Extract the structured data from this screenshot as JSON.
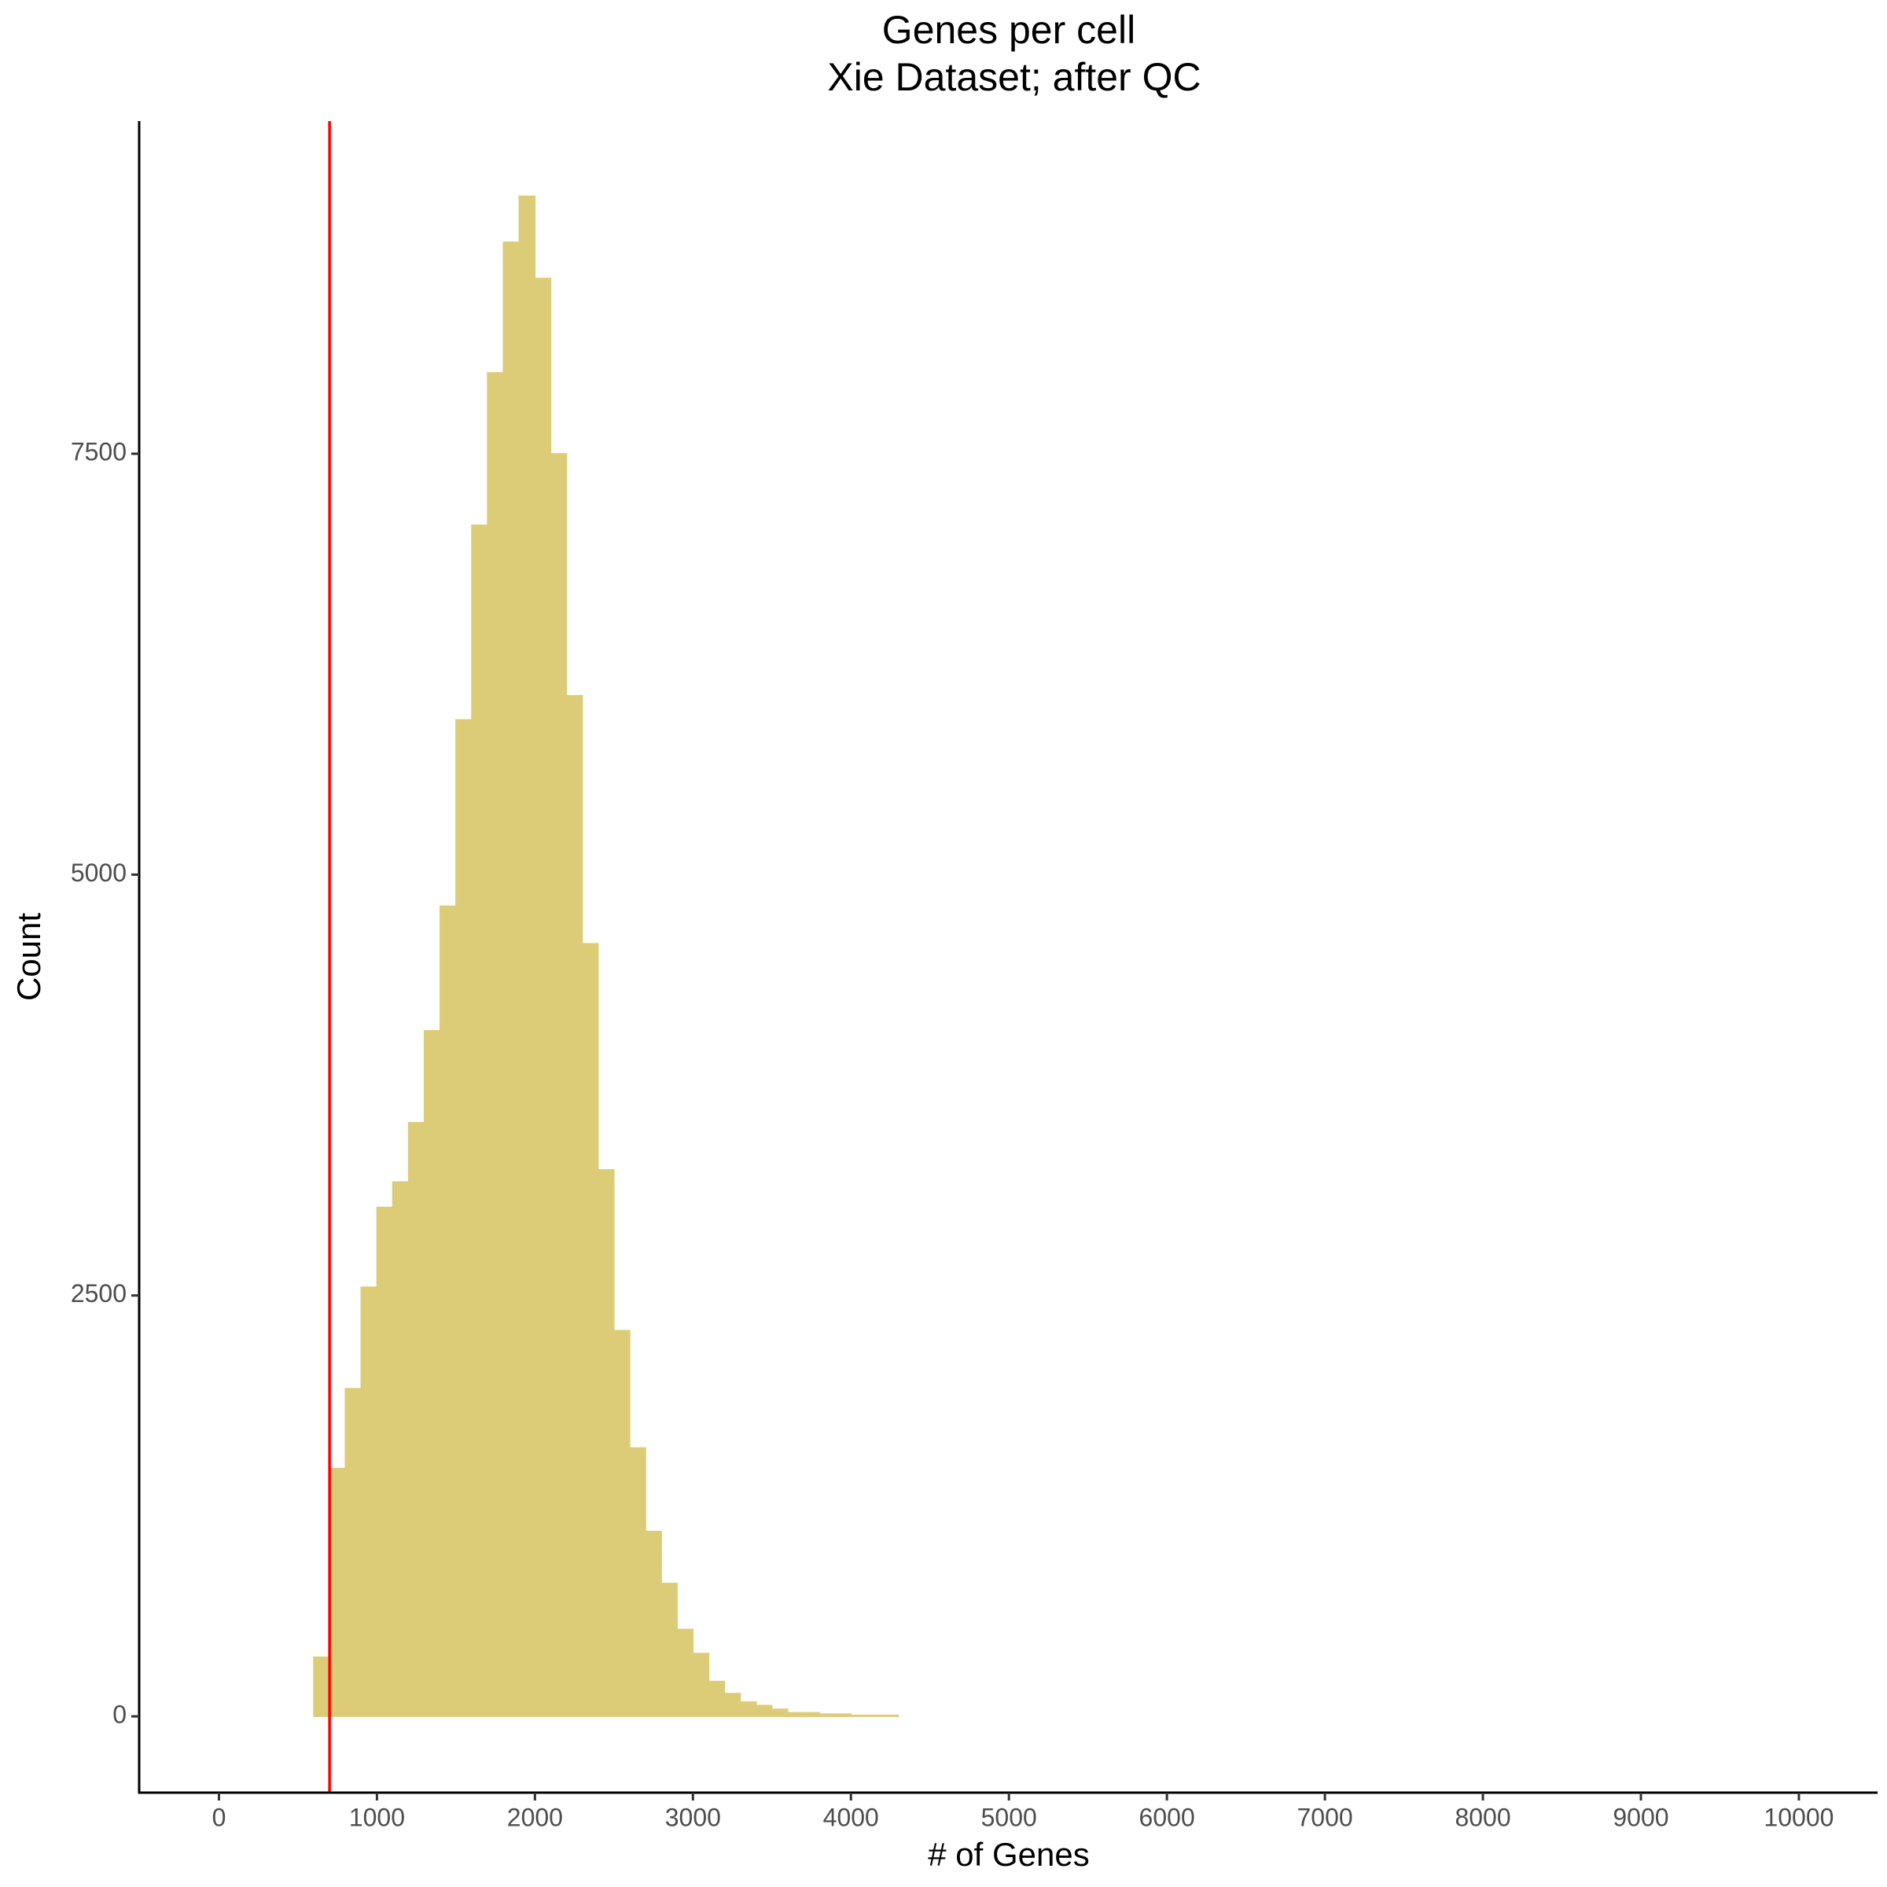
{
  "chart_data": {
    "type": "histogram",
    "title": "Genes per cell",
    "subtitle": "Xie Dataset; after QC",
    "x_label": "# of Genes",
    "y_label": "Count",
    "color": "#dccc78",
    "vline": 700,
    "vline_color": "#ff0000",
    "bins": [
      0,
      100,
      200,
      300,
      400,
      500,
      600,
      700,
      800,
      900,
      1000,
      1100,
      1200,
      1300,
      1400,
      1500,
      1600,
      1700,
      1800,
      1900,
      2000,
      2100,
      2200,
      2300,
      2400,
      2500,
      2600,
      2700,
      2800,
      2900,
      3000,
      3100,
      3200,
      3300,
      3400,
      3500,
      3600,
      3700,
      3800,
      3900,
      4000,
      4100,
      4200,
      4300,
      4400,
      4500,
      4600,
      4700,
      4800,
      4900,
      5000,
      5100,
      5200,
      5300,
      5400,
      5500,
      5600,
      5700,
      5800,
      5900,
      6000,
      6100,
      6200,
      6300,
      6400,
      6500,
      6600,
      6700,
      6800,
      6900,
      7000,
      7100,
      7200,
      7300,
      7400,
      7500,
      7600,
      7700,
      7800,
      7900,
      8000,
      8100,
      8200,
      8300,
      8400,
      8500,
      8600,
      8700,
      8800,
      8900,
      9000,
      9100,
      9200,
      9300,
      9400,
      9500,
      9600,
      9700,
      9800,
      9900,
      10000
    ],
    "values": [
      0,
      0,
      0,
      0,
      0,
      0,
      352,
      1473,
      1947,
      2550,
      3024,
      3175,
      3527,
      4073,
      4813,
      5920,
      7076,
      7981,
      8757,
      9030,
      8542,
      7500,
      6063,
      4590,
      3247,
      2292,
      1595,
      1099,
      790,
      517,
      374,
      208,
      136,
      86,
      65,
      43,
      22,
      22,
      14,
      14,
      7,
      7,
      7,
      0,
      0,
      0,
      0,
      0,
      0,
      0,
      0,
      0,
      0,
      0,
      0,
      0,
      0,
      0,
      0,
      0,
      0,
      0,
      0,
      0,
      0,
      0,
      0,
      0,
      0,
      0,
      0,
      0,
      0,
      0,
      0,
      0,
      0,
      0,
      0,
      0,
      0,
      0,
      0,
      0,
      0,
      0,
      0,
      0,
      0,
      0,
      0,
      0,
      0,
      0,
      0,
      0,
      0,
      0,
      0,
      0
    ],
    "xlim": [
      -505,
      10498
    ],
    "ylim": [
      -453,
      9476
    ],
    "xticks": [
      0,
      1000,
      2000,
      3000,
      4000,
      5000,
      6000,
      7000,
      8000,
      9000,
      10000
    ],
    "yticks": [
      0,
      2500,
      5000,
      7500
    ]
  }
}
